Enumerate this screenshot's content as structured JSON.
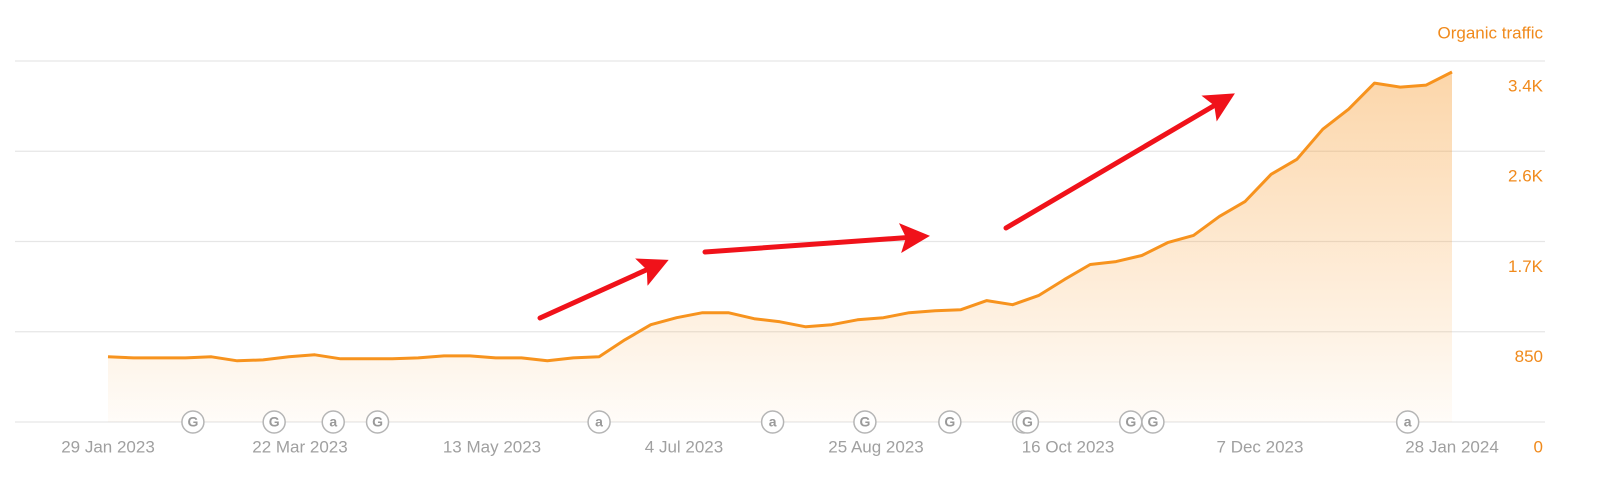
{
  "chart_data": {
    "type": "area",
    "y_label": "Organic traffic",
    "color": "#f7931e",
    "x": [
      "2023-01-29",
      "2023-02-05",
      "2023-02-12",
      "2023-02-19",
      "2023-02-26",
      "2023-03-05",
      "2023-03-12",
      "2023-03-19",
      "2023-03-26",
      "2023-04-02",
      "2023-04-09",
      "2023-04-16",
      "2023-04-23",
      "2023-04-30",
      "2023-05-07",
      "2023-05-14",
      "2023-05-21",
      "2023-05-28",
      "2023-06-04",
      "2023-06-11",
      "2023-06-18",
      "2023-06-25",
      "2023-07-02",
      "2023-07-09",
      "2023-07-16",
      "2023-07-23",
      "2023-07-30",
      "2023-08-06",
      "2023-08-13",
      "2023-08-20",
      "2023-08-27",
      "2023-09-03",
      "2023-09-10",
      "2023-09-17",
      "2023-09-24",
      "2023-10-01",
      "2023-10-08",
      "2023-10-15",
      "2023-10-22",
      "2023-10-29",
      "2023-11-05",
      "2023-11-12",
      "2023-11-19",
      "2023-11-26",
      "2023-12-03",
      "2023-12-10",
      "2023-12-17",
      "2023-12-24",
      "2023-12-31",
      "2024-01-07",
      "2024-01-14",
      "2024-01-21",
      "2024-01-28"
    ],
    "values": [
      614,
      604,
      604,
      604,
      614,
      576,
      585,
      614,
      633,
      595,
      595,
      595,
      604,
      623,
      623,
      604,
      604,
      576,
      604,
      614,
      774,
      916,
      982,
      1029,
      1029,
      973,
      944,
      897,
      916,
      963,
      982,
      1029,
      1048,
      1058,
      1143,
      1105,
      1190,
      1341,
      1483,
      1511,
      1568,
      1690,
      1757,
      1936,
      2078,
      2333,
      2474,
      2758,
      2946,
      3192,
      3154,
      3173,
      3296
    ],
    "xlim": [
      "2023-01-29",
      "2024-01-28"
    ],
    "xticks": [
      {
        "value": "2023-01-29",
        "label": "29 Jan 2023"
      },
      {
        "value": "2023-03-22",
        "label": "22 Mar 2023"
      },
      {
        "value": "2023-05-13",
        "label": "13 May 2023"
      },
      {
        "value": "2023-07-04",
        "label": "4 Jul 2023"
      },
      {
        "value": "2023-08-25",
        "label": "25 Aug 2023"
      },
      {
        "value": "2023-10-16",
        "label": "16 Oct 2023"
      },
      {
        "value": "2023-12-07",
        "label": "7 Dec 2023"
      },
      {
        "value": "2024-01-28",
        "label": "28 Jan 2024"
      }
    ],
    "ylim": [
      0,
      3400
    ],
    "yticks": [
      0,
      850,
      {
        "value": 1700,
        "label": "1.7K"
      },
      {
        "value": 2550,
        "label": "2.6K"
      },
      {
        "value": 3400,
        "label": "3.4K"
      }
    ],
    "grid": true,
    "annotations": [
      {
        "date": "2023-02-21",
        "label": "G"
      },
      {
        "date": "2023-03-15",
        "label": "G"
      },
      {
        "date": "2023-03-31",
        "label": "a"
      },
      {
        "date": "2023-04-12",
        "label": "G"
      },
      {
        "date": "2023-06-11",
        "label": "a"
      },
      {
        "date": "2023-07-28",
        "label": "a"
      },
      {
        "date": "2023-08-22",
        "label": "G"
      },
      {
        "date": "2023-09-14",
        "label": "G"
      },
      {
        "date": "2023-10-04",
        "label": "G"
      },
      {
        "date": "2023-10-05",
        "label": "G"
      },
      {
        "date": "2023-11-02",
        "label": "G"
      },
      {
        "date": "2023-11-08",
        "label": "G"
      },
      {
        "date": "2024-01-16",
        "label": "a"
      }
    ]
  }
}
